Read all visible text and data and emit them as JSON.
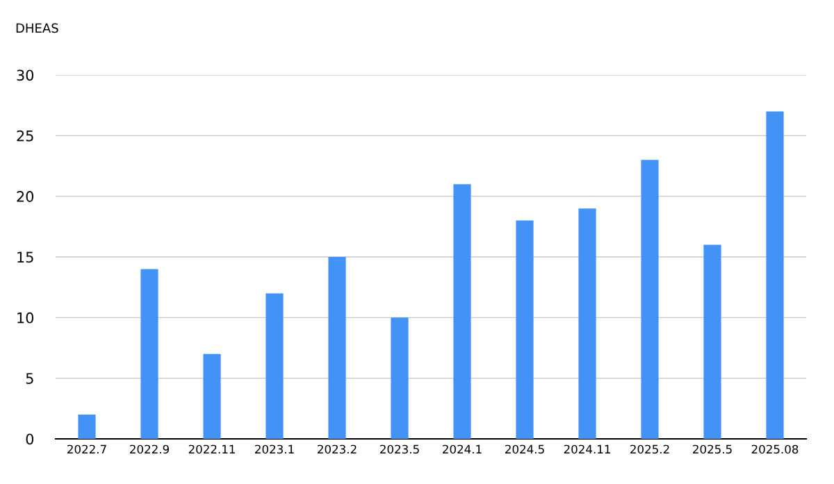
{
  "chart_data": {
    "type": "bar",
    "ylabel": "DHEAS",
    "categories": [
      "2022.7",
      "2022.9",
      "2022.11",
      "2023.1",
      "2023.2",
      "2023.5",
      "2024.1",
      "2024.5",
      "2024.11",
      "2025.2",
      "2025.5",
      "2025.08"
    ],
    "values": [
      2,
      14,
      7,
      12,
      15,
      10,
      21,
      18,
      19,
      23,
      16,
      27
    ],
    "color": "#4293f5",
    "ylim": [
      0,
      30
    ],
    "yticks": [
      0,
      5,
      10,
      15,
      20,
      25,
      30
    ],
    "grid": "y",
    "legend": false
  }
}
